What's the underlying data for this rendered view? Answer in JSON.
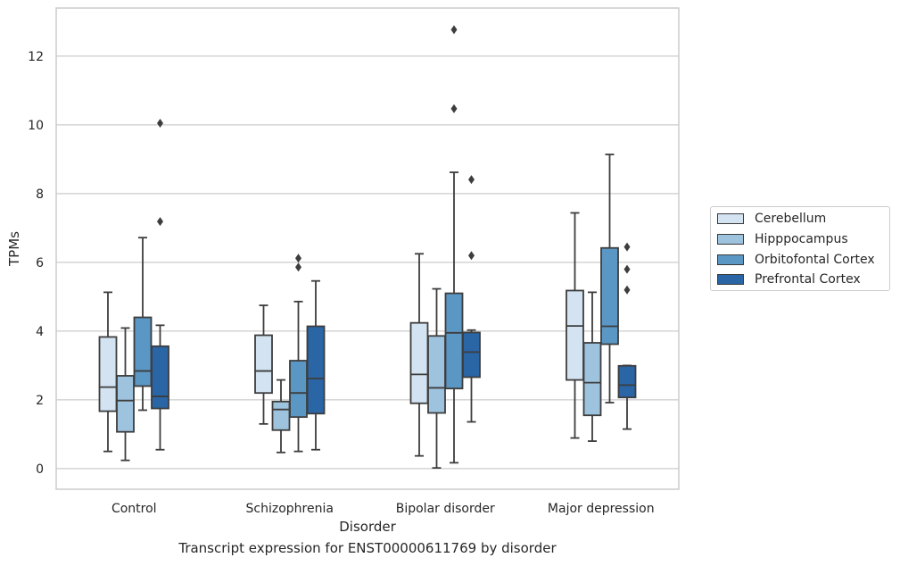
{
  "caption": "Transcript expression for ENST00000611769 by disorder",
  "chart_data": {
    "type": "box",
    "xlabel": "Disorder",
    "ylabel": "TPMs",
    "ylim": [
      -0.6,
      13.4
    ],
    "yticks": [
      "0",
      "2",
      "4",
      "6",
      "8",
      "10",
      "12"
    ],
    "ytick_values": [
      0,
      2,
      4,
      6,
      8,
      10,
      12
    ],
    "grid": "horizontal",
    "legend_position": "right",
    "categories": [
      "Control",
      "Schizophrenia",
      "Bipolar disorder",
      "Major depression"
    ],
    "series": [
      {
        "name": "Cerebellum",
        "color": "#d3e3f1",
        "boxes": [
          {
            "whislo": 0.5,
            "q1": 1.67,
            "med": 2.37,
            "q3": 3.83,
            "whishi": 5.13,
            "fliers": []
          },
          {
            "whislo": 1.3,
            "q1": 2.2,
            "med": 2.84,
            "q3": 3.88,
            "whishi": 4.75,
            "fliers": []
          },
          {
            "whislo": 0.37,
            "q1": 1.9,
            "med": 2.74,
            "q3": 4.24,
            "whishi": 6.25,
            "fliers": []
          },
          {
            "whislo": 0.89,
            "q1": 2.58,
            "med": 4.15,
            "q3": 5.18,
            "whishi": 7.44,
            "fliers": []
          }
        ]
      },
      {
        "name": "Hipppocampus",
        "color": "#9ec3de",
        "boxes": [
          {
            "whislo": 0.24,
            "q1": 1.07,
            "med": 1.98,
            "q3": 2.7,
            "whishi": 4.09,
            "fliers": []
          },
          {
            "whislo": 0.47,
            "q1": 1.12,
            "med": 1.72,
            "q3": 1.95,
            "whishi": 2.58,
            "fliers": []
          },
          {
            "whislo": 0.02,
            "q1": 1.62,
            "med": 2.35,
            "q3": 3.86,
            "whishi": 5.23,
            "fliers": []
          },
          {
            "whislo": 0.8,
            "q1": 1.55,
            "med": 2.5,
            "q3": 3.66,
            "whishi": 5.13,
            "fliers": []
          }
        ]
      },
      {
        "name": "Orbitofontal Cortex",
        "color": "#5b97c4",
        "boxes": [
          {
            "whislo": 1.7,
            "q1": 2.4,
            "med": 2.84,
            "q3": 4.4,
            "whishi": 6.72,
            "fliers": []
          },
          {
            "whislo": 0.5,
            "q1": 1.5,
            "med": 2.2,
            "q3": 3.14,
            "whishi": 4.86,
            "fliers": [
              5.86,
              6.12
            ]
          },
          {
            "whislo": 0.17,
            "q1": 2.33,
            "med": 3.95,
            "q3": 5.1,
            "whishi": 8.62,
            "fliers": [
              10.47,
              12.77
            ]
          },
          {
            "whislo": 1.92,
            "q1": 3.62,
            "med": 4.14,
            "q3": 6.42,
            "whishi": 9.14,
            "fliers": []
          }
        ]
      },
      {
        "name": "Prefrontal Cortex",
        "color": "#2a65a6",
        "boxes": [
          {
            "whislo": 0.55,
            "q1": 1.75,
            "med": 2.1,
            "q3": 3.56,
            "whishi": 4.17,
            "fliers": [
              7.19,
              10.05
            ]
          },
          {
            "whislo": 0.55,
            "q1": 1.6,
            "med": 2.62,
            "q3": 4.14,
            "whishi": 5.46,
            "fliers": []
          },
          {
            "whislo": 1.36,
            "q1": 2.66,
            "med": 3.39,
            "q3": 3.96,
            "whishi": 4.03,
            "fliers": [
              6.2,
              8.41
            ]
          },
          {
            "whislo": 1.15,
            "q1": 2.07,
            "med": 2.43,
            "q3": 2.99,
            "whishi": 3.0,
            "fliers": [
              5.2,
              5.8,
              6.45
            ]
          }
        ]
      }
    ]
  }
}
